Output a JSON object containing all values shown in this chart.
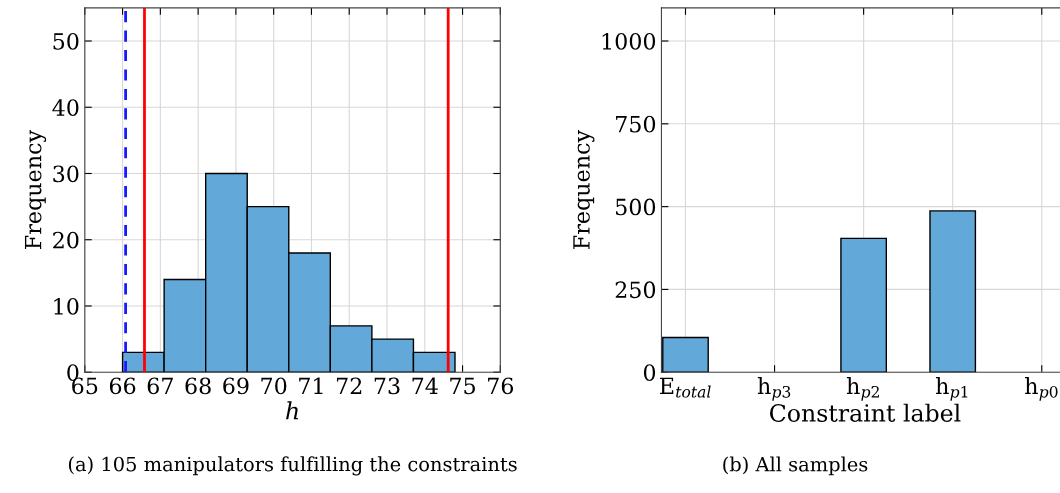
{
  "chart_data": [
    {
      "type": "histogram",
      "xlabel": "h",
      "ylabel": "Frequency",
      "bins": [
        66.0,
        67.1,
        68.2,
        69.3,
        70.4,
        71.5,
        72.6,
        73.7,
        74.8
      ],
      "values": [
        3,
        14,
        30,
        25,
        18,
        7,
        5,
        3
      ],
      "color": "#62a8d8",
      "xlim": [
        65,
        76
      ],
      "xticks": [
        65,
        66,
        67,
        68,
        69,
        70,
        71,
        72,
        73,
        74,
        75,
        76
      ],
      "ylim": [
        0,
        55
      ],
      "yticks": [
        0,
        10,
        20,
        30,
        40,
        50
      ],
      "grid": true,
      "ref_lines": [
        {
          "axis": "x",
          "value": 66.08,
          "color": "#1a1aff",
          "line_style": "dashed"
        },
        {
          "axis": "x",
          "value": 66.58,
          "color": "#ff0000",
          "line_style": "solid"
        },
        {
          "axis": "x",
          "value": 74.62,
          "color": "#ff0000",
          "line_style": "solid"
        }
      ],
      "annotations": [
        "(a) 105 manipulators fulfilling the constraints"
      ]
    },
    {
      "type": "bar",
      "xlabel": "Constraint label",
      "ylabel": "Frequency",
      "categories": [
        "E$_{total}$",
        "h$_{p3}$",
        "h$_{p2}$",
        "h$_{p1}$",
        "h$_{p0}$"
      ],
      "values": [
        105,
        0,
        404,
        487,
        0
      ],
      "color": "#62a8d8",
      "ylim": [
        0,
        1100
      ],
      "yticks": [
        0,
        250,
        500,
        750,
        1000
      ],
      "grid": true,
      "annotations": [
        "(b) All samples"
      ]
    }
  ]
}
